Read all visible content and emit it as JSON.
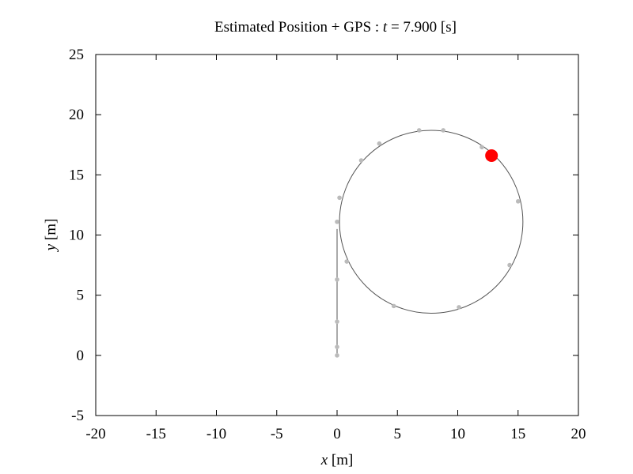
{
  "chart_data": {
    "type": "line",
    "title": {
      "prefix": "Estimated Position + GPS :  ",
      "variable": "t",
      "suffix": " = 7.900 [s]"
    },
    "xlabel": {
      "variable": "x",
      "unit": " [m]"
    },
    "ylabel": {
      "variable": "y",
      "unit": " [m]"
    },
    "xlim": [
      -20,
      20
    ],
    "ylim": [
      -5,
      25
    ],
    "xticks": [
      -20,
      -15,
      -10,
      -5,
      0,
      5,
      10,
      15,
      20
    ],
    "yticks": [
      -5,
      0,
      5,
      10,
      15,
      20,
      25
    ],
    "grid": false,
    "series": [
      {
        "kind": "estimated-trajectory-straight",
        "color": "#555555",
        "x": [
          0,
          0
        ],
        "y": [
          0,
          10.5
        ]
      },
      {
        "kind": "estimated-trajectory-circle",
        "color": "#555555",
        "center": [
          7.8,
          11.1
        ],
        "radius": 7.6
      },
      {
        "kind": "gps-measurements",
        "color": "#bbbbbb",
        "points": [
          [
            0.0,
            0.0
          ],
          [
            0.0,
            0.7
          ],
          [
            0.0,
            2.8
          ],
          [
            0.0,
            6.3
          ],
          [
            0.0,
            11.1
          ],
          [
            0.8,
            7.8
          ],
          [
            0.2,
            13.1
          ],
          [
            2.0,
            16.2
          ],
          [
            3.5,
            17.6
          ],
          [
            6.8,
            18.7
          ],
          [
            8.8,
            18.7
          ],
          [
            12.0,
            17.3
          ],
          [
            15.0,
            12.8
          ],
          [
            14.3,
            7.5
          ],
          [
            10.1,
            4.0
          ],
          [
            4.7,
            4.1
          ]
        ]
      },
      {
        "kind": "current-position",
        "color": "#ff0000",
        "points": [
          [
            12.8,
            16.6
          ]
        ]
      }
    ]
  }
}
